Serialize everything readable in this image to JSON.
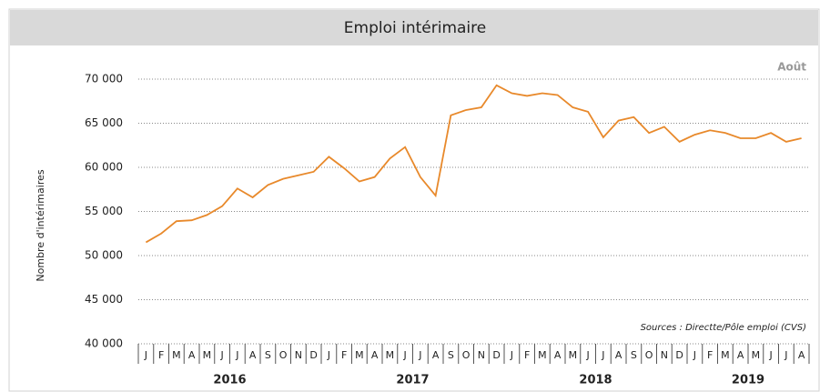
{
  "chart_data": {
    "type": "line",
    "title": "Emploi intérimaire",
    "corner_note": "Août",
    "source": "Sources : Directte/Pôle emploi (CVS)",
    "y_label": "Nombre d'intérimaires",
    "categories": [
      "J",
      "F",
      "M",
      "A",
      "M",
      "J",
      "J",
      "A",
      "S",
      "O",
      "N",
      "D",
      "J",
      "F",
      "M",
      "A",
      "M",
      "J",
      "J",
      "A",
      "S",
      "O",
      "N",
      "D",
      "J",
      "F",
      "M",
      "A",
      "M",
      "J",
      "J",
      "A",
      "S",
      "O",
      "N",
      "D",
      "J",
      "F",
      "M",
      "A",
      "M",
      "J",
      "J",
      "A"
    ],
    "year_labels": [
      "2016",
      "2017",
      "2018",
      "2019"
    ],
    "series": [
      {
        "name": "Emploi intérimaire",
        "color": "#e8892b",
        "values": [
          51500,
          52500,
          53900,
          54000,
          54600,
          55600,
          57600,
          56600,
          58000,
          58700,
          59100,
          59500,
          61200,
          59900,
          58400,
          58900,
          61000,
          62300,
          58900,
          56800,
          65900,
          66500,
          66800,
          69300,
          68400,
          68100,
          68400,
          68200,
          66800,
          66300,
          63400,
          65300,
          65700,
          63900,
          64600,
          62900,
          63700,
          64200,
          63900,
          63300,
          63300,
          63900,
          62900,
          63300
        ]
      }
    ],
    "ylim": [
      40000,
      70000
    ],
    "yticks": [
      {
        "value": 40000,
        "label": "40 000"
      },
      {
        "value": 45000,
        "label": "45 000"
      },
      {
        "value": 50000,
        "label": "50 000"
      },
      {
        "value": 55000,
        "label": "55 000"
      },
      {
        "value": 60000,
        "label": "60 000"
      },
      {
        "value": 65000,
        "label": "65 000"
      },
      {
        "value": 70000,
        "label": "70 000"
      }
    ],
    "grid": true
  }
}
